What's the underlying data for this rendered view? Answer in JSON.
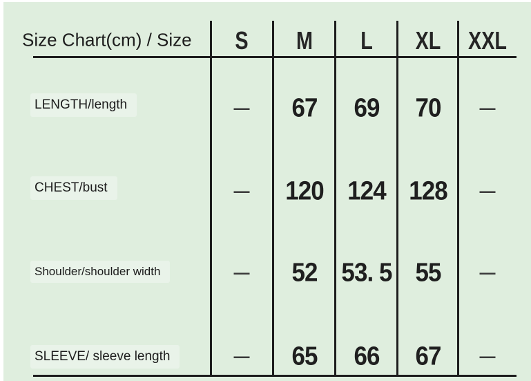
{
  "chart_data": {
    "type": "table",
    "title": "Size Chart(cm) / Size",
    "unit": "cm",
    "columns": [
      "S",
      "M",
      "L",
      "XL",
      "XXL"
    ],
    "rows": [
      {
        "label": "LENGTH/length",
        "values": [
          "—",
          "67",
          "69",
          "70",
          "—"
        ]
      },
      {
        "label": "CHEST/bust",
        "values": [
          "—",
          "120",
          "124",
          "128",
          "—"
        ]
      },
      {
        "label": "Shoulder/shoulder width",
        "values": [
          "—",
          "52",
          "53. 5",
          "55",
          "—"
        ]
      },
      {
        "label": "SLEEVE/ sleeve length",
        "values": [
          "—",
          "65",
          "66",
          "67",
          "—"
        ]
      }
    ]
  },
  "colors": {
    "background": "#dfeede",
    "grid_line": "#1d1d1d",
    "text": "#1f1f1f",
    "dash": "#3a3a3a"
  }
}
